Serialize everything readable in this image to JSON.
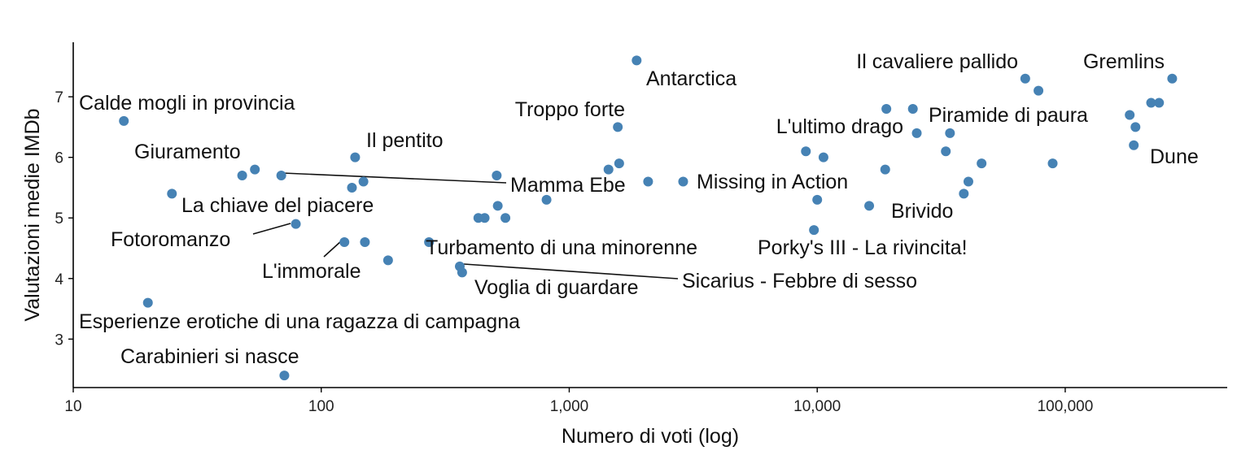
{
  "chart_data": {
    "type": "scatter",
    "xlabel": "Numero di voti (log)",
    "ylabel": "Valutazioni medie IMDb",
    "x_scale": "log10",
    "xlim": [
      10,
      450000
    ],
    "ylim": [
      2.2,
      7.9
    ],
    "x_ticks": [
      10,
      100,
      1000,
      10000,
      100000
    ],
    "x_tick_labels": [
      "10",
      "100",
      "1,000",
      "10,000",
      "100,000"
    ],
    "y_ticks": [
      3,
      4,
      5,
      6,
      7
    ],
    "y_tick_labels": [
      "3",
      "4",
      "5",
      "6",
      "7"
    ],
    "grid": false,
    "points": [
      {
        "x": 16,
        "y": 6.6
      },
      {
        "x": 20,
        "y": 3.6
      },
      {
        "x": 25,
        "y": 5.4
      },
      {
        "x": 48,
        "y": 5.7
      },
      {
        "x": 54,
        "y": 5.8
      },
      {
        "x": 69,
        "y": 5.7
      },
      {
        "x": 71,
        "y": 2.4
      },
      {
        "x": 79,
        "y": 4.9
      },
      {
        "x": 124,
        "y": 4.6
      },
      {
        "x": 133,
        "y": 5.5
      },
      {
        "x": 137,
        "y": 6.0
      },
      {
        "x": 148,
        "y": 5.6
      },
      {
        "x": 150,
        "y": 4.6
      },
      {
        "x": 186,
        "y": 4.3
      },
      {
        "x": 272,
        "y": 4.6
      },
      {
        "x": 362,
        "y": 4.2
      },
      {
        "x": 370,
        "y": 4.1
      },
      {
        "x": 430,
        "y": 5.0
      },
      {
        "x": 456,
        "y": 5.0
      },
      {
        "x": 510,
        "y": 5.7
      },
      {
        "x": 515,
        "y": 5.2
      },
      {
        "x": 553,
        "y": 5.0
      },
      {
        "x": 810,
        "y": 5.3
      },
      {
        "x": 1440,
        "y": 5.8
      },
      {
        "x": 1570,
        "y": 6.5
      },
      {
        "x": 1590,
        "y": 5.9
      },
      {
        "x": 1870,
        "y": 7.6
      },
      {
        "x": 2080,
        "y": 5.6
      },
      {
        "x": 2880,
        "y": 5.6
      },
      {
        "x": 9000,
        "y": 6.1
      },
      {
        "x": 9700,
        "y": 4.8
      },
      {
        "x": 10000,
        "y": 5.3
      },
      {
        "x": 10600,
        "y": 6.0
      },
      {
        "x": 16200,
        "y": 5.2
      },
      {
        "x": 18800,
        "y": 5.8
      },
      {
        "x": 19000,
        "y": 6.8
      },
      {
        "x": 24300,
        "y": 6.8
      },
      {
        "x": 25200,
        "y": 6.4
      },
      {
        "x": 33000,
        "y": 6.1
      },
      {
        "x": 34300,
        "y": 6.4
      },
      {
        "x": 39000,
        "y": 5.4
      },
      {
        "x": 40700,
        "y": 5.6
      },
      {
        "x": 46000,
        "y": 5.9
      },
      {
        "x": 69000,
        "y": 7.3
      },
      {
        "x": 78000,
        "y": 7.1
      },
      {
        "x": 89000,
        "y": 5.9
      },
      {
        "x": 182000,
        "y": 6.7
      },
      {
        "x": 189000,
        "y": 6.2
      },
      {
        "x": 192000,
        "y": 6.5
      },
      {
        "x": 222000,
        "y": 6.9
      },
      {
        "x": 239000,
        "y": 6.9
      },
      {
        "x": 270000,
        "y": 7.3
      }
    ],
    "labels": [
      {
        "text": "Calde mogli in provincia",
        "point": 0
      },
      {
        "text": "Esperienze erotiche di una ragazza di campagna",
        "point": 1
      },
      {
        "text": "Giuramento",
        "point": 3
      },
      {
        "text": "Carabinieri si nasce",
        "point": 6
      },
      {
        "text": "La chiave del piacere",
        "point": 2
      },
      {
        "text": "Fotoromanzo",
        "point": 7
      },
      {
        "text": "L'immorale",
        "point": 8
      },
      {
        "text": "Il pentito",
        "point": 10
      },
      {
        "text": "Mamma Ebe",
        "point": 5
      },
      {
        "text": "Turbamento di una minorenne",
        "point": 14
      },
      {
        "text": "Voglia di guardare",
        "point": 16
      },
      {
        "text": "Sicarius - Febbre di sesso",
        "point": 15
      },
      {
        "text": "Troppo forte",
        "point": 24
      },
      {
        "text": "Antarctica",
        "point": 26
      },
      {
        "text": "Missing in Action",
        "point": 28
      },
      {
        "text": "Porky's III - La rivincita!",
        "point": 30
      },
      {
        "text": "L'ultimo drago",
        "point": 29
      },
      {
        "text": "Brivido",
        "point": 33
      },
      {
        "text": "Piramide di paura",
        "point": 39
      },
      {
        "text": "Il cavaliere pallido",
        "point": 43
      },
      {
        "text": "Gremlins",
        "point": 51
      },
      {
        "text": "Dune",
        "point": 47
      }
    ]
  }
}
